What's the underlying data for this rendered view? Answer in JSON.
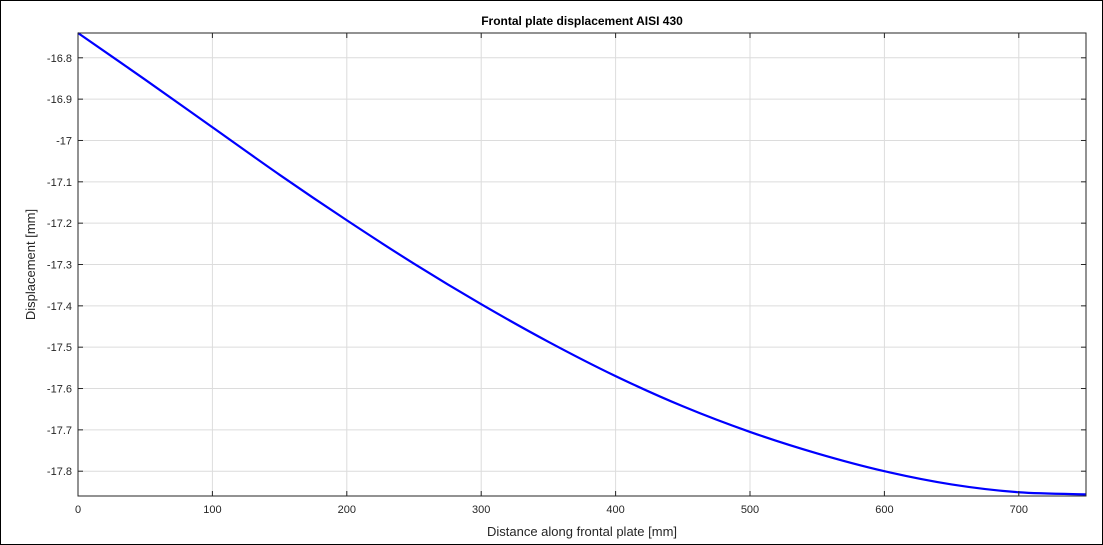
{
  "chart_data": {
    "type": "line",
    "title": "Frontal plate displacement AISI 430",
    "xlabel": "Distance along frontal plate [mm]",
    "ylabel": "Displacement [mm]",
    "xlim": [
      0,
      750
    ],
    "ylim": [
      -17.86,
      -16.74
    ],
    "xticks": [
      0,
      100,
      200,
      300,
      400,
      500,
      600,
      700
    ],
    "yticks": [
      -16.8,
      -16.9,
      -17,
      -17.1,
      -17.2,
      -17.3,
      -17.4,
      -17.5,
      -17.6,
      -17.7,
      -17.8
    ],
    "xtick_labels": [
      "0",
      "100",
      "200",
      "300",
      "400",
      "500",
      "600",
      "700"
    ],
    "ytick_labels": [
      "-16.8",
      "-16.9",
      "-17",
      "-17.1",
      "-17.2",
      "-17.3",
      "-17.4",
      "-17.5",
      "-17.6",
      "-17.7",
      "-17.8"
    ],
    "grid": true,
    "series": [
      {
        "color": "#0000ff",
        "x": [
          0,
          50,
          100,
          150,
          200,
          250,
          300,
          350,
          400,
          450,
          500,
          550,
          600,
          650,
          700,
          750
        ],
        "y": [
          -16.74,
          -16.853,
          -16.968,
          -17.083,
          -17.193,
          -17.298,
          -17.396,
          -17.487,
          -17.57,
          -17.643,
          -17.705,
          -17.757,
          -17.8,
          -17.832,
          -17.851,
          -17.856
        ]
      }
    ]
  }
}
